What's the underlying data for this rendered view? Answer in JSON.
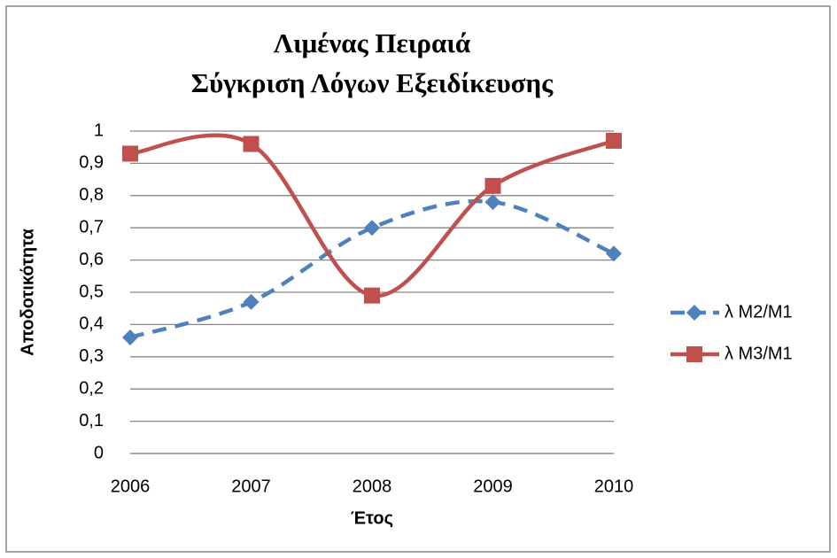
{
  "chart_data": {
    "type": "line",
    "title": [
      "Λιμένας Πειραιά",
      "Σύγκριση Λόγων Εξειδίκευσης"
    ],
    "y_label": "Αποδοτικότητα",
    "x_label": "Έτος",
    "categories": [
      "2006",
      "2007",
      "2008",
      "2009",
      "2010"
    ],
    "series": [
      {
        "name": "λ M2/M1",
        "color": "#4f81bd",
        "dashed": true,
        "marker": "diamond",
        "values": [
          0.36,
          0.47,
          0.7,
          0.78,
          0.62
        ]
      },
      {
        "name": "λ M3/M1",
        "color": "#c0504d",
        "dashed": false,
        "marker": "square",
        "values": [
          0.93,
          0.96,
          0.49,
          0.83,
          0.97
        ]
      }
    ],
    "smooth": true,
    "ylim": [
      0,
      1
    ],
    "yticks": [
      0,
      {
        "value": 0.1,
        "label": "0,1"
      },
      {
        "value": 0.2,
        "label": "0,2"
      },
      {
        "value": 0.3,
        "label": "0,3"
      },
      {
        "value": 0.4,
        "label": "0,4"
      },
      {
        "value": 0.5,
        "label": "0,5"
      },
      {
        "value": 0.6,
        "label": "0,6"
      },
      {
        "value": 0.7,
        "label": "0,7"
      },
      {
        "value": 0.8,
        "label": "0,8"
      },
      {
        "value": 0.9,
        "label": "0,9"
      },
      1
    ],
    "grid": true,
    "legend": "right"
  }
}
